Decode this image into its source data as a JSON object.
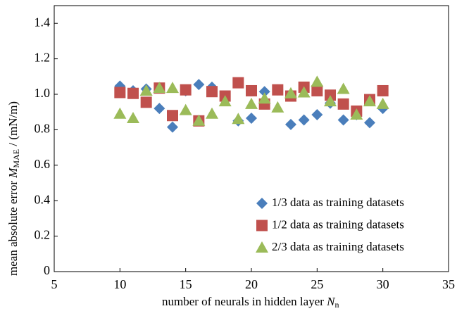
{
  "chart_data": {
    "type": "scatter",
    "x_label": {
      "text": "number of neurals in hidden layer",
      "symbol": "N",
      "subscript": "n"
    },
    "y_label": {
      "text": "mean absolute error",
      "symbol": "M",
      "subscript": "MAE",
      "unit": "/ (mN/m)"
    },
    "x": [
      10,
      11,
      12,
      13,
      14,
      15,
      16,
      17,
      18,
      19,
      20,
      21,
      22,
      23,
      24,
      25,
      26,
      27,
      28,
      29,
      30
    ],
    "series": [
      {
        "name": "1/3 data as training datasets",
        "color": "#4a7ebb",
        "marker": "diamond",
        "values": [
          1.046,
          1.02,
          1.03,
          0.92,
          0.815,
          1.02,
          1.055,
          1.04,
          0.99,
          0.85,
          0.865,
          1.015,
          1.025,
          0.83,
          0.855,
          0.885,
          0.95,
          0.855,
          0.885,
          0.84,
          0.92
        ]
      },
      {
        "name": "1/2 data as training datasets",
        "color": "#c0504d",
        "marker": "square",
        "values": [
          1.01,
          1.005,
          0.955,
          1.035,
          0.88,
          1.025,
          0.85,
          1.015,
          0.99,
          1.065,
          1.02,
          0.945,
          1.025,
          0.99,
          1.04,
          1.02,
          0.995,
          0.945,
          0.905,
          0.97,
          1.02
        ]
      },
      {
        "name": "2/3 data as training datasets",
        "color": "#9bbb59",
        "marker": "triangle",
        "values": [
          0.89,
          0.865,
          1.02,
          1.035,
          1.035,
          0.91,
          0.85,
          0.89,
          0.96,
          0.86,
          0.945,
          0.975,
          0.925,
          1.005,
          1.01,
          1.07,
          0.96,
          1.03,
          0.885,
          0.96,
          0.945
        ]
      }
    ],
    "xlim": [
      5,
      35
    ],
    "xticks": [
      5,
      10,
      15,
      20,
      25,
      30,
      35
    ],
    "ylim": [
      0,
      1.5
    ],
    "yticks": [
      0,
      0.2,
      0.4,
      0.6,
      0.8,
      {
        "value": 1,
        "label": "1.0"
      },
      1.2,
      1.4
    ],
    "legend": "lower right",
    "grid": false
  }
}
